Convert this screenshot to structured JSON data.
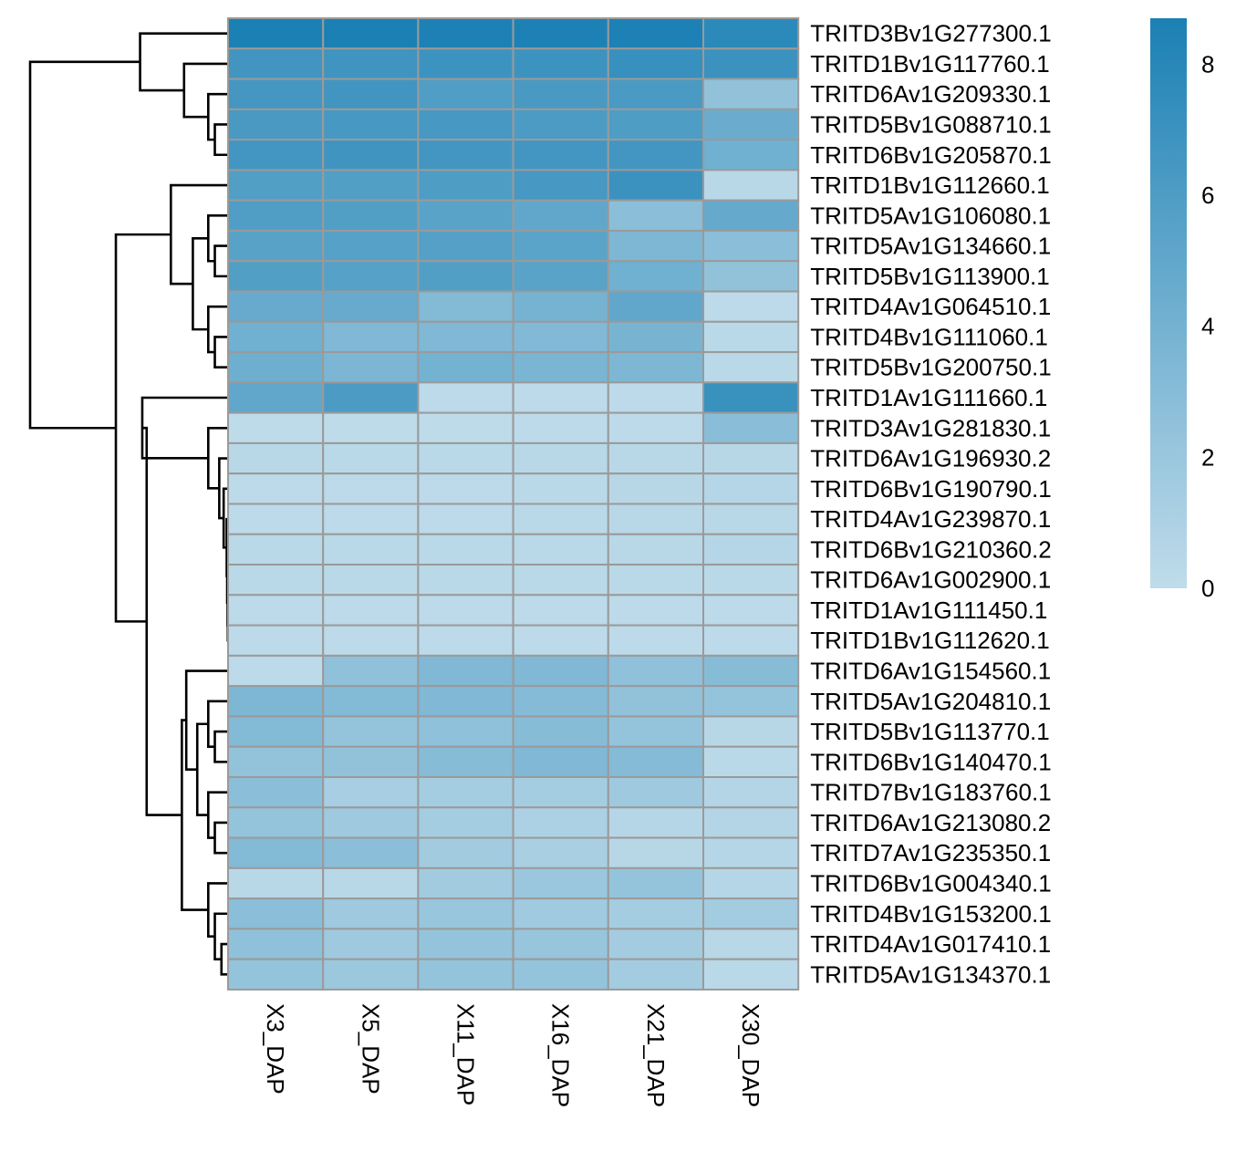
{
  "chart_data": {
    "type": "heatmap",
    "title": "",
    "xlabel": "",
    "ylabel": "",
    "columns": [
      "X3_DAP",
      "X5_DAP",
      "X11_DAP",
      "X16_DAP",
      "X21_DAP",
      "X30_DAP"
    ],
    "rows": [
      "TRITD3Bv1G277300.1",
      "TRITD1Bv1G117760.1",
      "TRITD6Av1G209330.1",
      "TRITD5Bv1G088710.1",
      "TRITD6Bv1G205870.1",
      "TRITD1Bv1G112660.1",
      "TRITD5Av1G106080.1",
      "TRITD5Av1G134660.1",
      "TRITD5Bv1G113900.1",
      "TRITD4Av1G064510.1",
      "TRITD4Bv1G111060.1",
      "TRITD5Bv1G200750.1",
      "TRITD1Av1G111660.1",
      "TRITD3Av1G281830.1",
      "TRITD6Av1G196930.2",
      "TRITD6Bv1G190790.1",
      "TRITD4Av1G239870.1",
      "TRITD6Bv1G210360.2",
      "TRITD6Av1G002900.1",
      "TRITD1Av1G111450.1",
      "TRITD1Bv1G112620.1",
      "TRITD6Av1G154560.1",
      "TRITD5Av1G204810.1",
      "TRITD5Bv1G113770.1",
      "TRITD6Bv1G140470.1",
      "TRITD7Bv1G183760.1",
      "TRITD6Av1G213080.2",
      "TRITD7Av1G235350.1",
      "TRITD6Bv1G004340.1",
      "TRITD4Bv1G153200.1",
      "TRITD4Av1G017410.1",
      "TRITD5Av1G134370.1"
    ],
    "values": [
      [
        8.7,
        8.7,
        8.6,
        8.6,
        8.6,
        7.8
      ],
      [
        6.7,
        6.8,
        6.9,
        6.9,
        7.2,
        7.0
      ],
      [
        6.5,
        6.7,
        5.9,
        6.3,
        6.2,
        2.5
      ],
      [
        6.3,
        6.4,
        6.4,
        6.1,
        6.0,
        4.5
      ],
      [
        6.6,
        6.8,
        6.6,
        6.6,
        6.6,
        4.2
      ],
      [
        5.8,
        5.8,
        6.0,
        6.4,
        7.0,
        0.4
      ],
      [
        5.9,
        5.8,
        5.4,
        5.0,
        2.8,
        4.8
      ],
      [
        5.5,
        5.6,
        5.7,
        5.3,
        3.5,
        2.8
      ],
      [
        5.8,
        5.6,
        5.8,
        5.4,
        4.2,
        2.5
      ],
      [
        4.7,
        4.7,
        3.2,
        3.9,
        5.0,
        0.2
      ],
      [
        4.2,
        3.4,
        3.4,
        3.3,
        3.8,
        0.3
      ],
      [
        4.3,
        3.6,
        4.0,
        3.7,
        3.5,
        0.3
      ],
      [
        5.0,
        6.1,
        0.2,
        0.2,
        0.2,
        7.1
      ],
      [
        0.1,
        0.1,
        0.1,
        0.2,
        0.2,
        2.9
      ],
      [
        0.4,
        0.3,
        0.3,
        0.4,
        0.4,
        0.5
      ],
      [
        0.2,
        0.2,
        0.2,
        0.3,
        0.5,
        0.6
      ],
      [
        0.2,
        0.2,
        0.2,
        0.3,
        0.4,
        0.4
      ],
      [
        0.3,
        0.3,
        0.3,
        0.3,
        0.4,
        0.6
      ],
      [
        0.3,
        0.3,
        0.3,
        0.3,
        0.3,
        0.3
      ],
      [
        0.2,
        0.2,
        0.2,
        0.2,
        0.2,
        0.2
      ],
      [
        0.2,
        0.2,
        0.2,
        0.2,
        0.2,
        0.2
      ],
      [
        0.2,
        2.6,
        3.4,
        3.4,
        2.6,
        3.0
      ],
      [
        3.5,
        3.2,
        3.4,
        3.1,
        2.5,
        2.3
      ],
      [
        3.2,
        2.3,
        2.6,
        3.0,
        2.3,
        0.5
      ],
      [
        2.4,
        2.5,
        3.0,
        3.4,
        3.1,
        0.3
      ],
      [
        2.8,
        1.3,
        1.4,
        1.4,
        1.8,
        0.7
      ],
      [
        2.3,
        1.8,
        1.4,
        1.0,
        0.6,
        0.7
      ],
      [
        3.2,
        2.8,
        1.6,
        1.2,
        0.5,
        0.6
      ],
      [
        0.4,
        0.4,
        1.6,
        2.0,
        2.3,
        0.6
      ],
      [
        2.8,
        1.8,
        2.1,
        1.7,
        1.4,
        1.5
      ],
      [
        2.6,
        1.8,
        2.3,
        2.2,
        1.5,
        0.4
      ],
      [
        2.3,
        1.9,
        2.3,
        2.3,
        1.5,
        0.3
      ]
    ],
    "scale": {
      "min": 0,
      "max": 8.7,
      "low_color": "#c0dcea",
      "high_color": "#1b80b4"
    },
    "legend": {
      "position": "right",
      "ticks": [
        "0",
        "2",
        "4",
        "6",
        "8"
      ]
    },
    "grid_color": "#9a9a9a",
    "dendrogram_color": "#000000",
    "row_dendrogram": {
      "leaf_order": [
        0,
        1,
        2,
        3,
        4,
        5,
        6,
        7,
        8,
        9,
        10,
        11,
        12,
        13,
        14,
        15,
        16,
        17,
        18,
        19,
        20,
        21,
        22,
        23,
        24,
        25,
        26,
        27,
        28,
        29,
        30,
        31
      ],
      "merges": [
        [
          3,
          4,
          0.6
        ],
        [
          2,
          -1,
          0.9
        ],
        [
          1,
          -2,
          2.0
        ],
        [
          0,
          -3,
          4.0
        ],
        [
          7,
          8,
          0.6
        ],
        [
          6,
          -5,
          0.9
        ],
        [
          10,
          11,
          0.6
        ],
        [
          9,
          -7,
          0.9
        ],
        [
          -6,
          -8,
          1.6
        ],
        [
          5,
          -9,
          2.6
        ],
        [
          19,
          20,
          0.01
        ],
        [
          18,
          -11,
          0.02
        ],
        [
          17,
          -12,
          0.04
        ],
        [
          16,
          -13,
          0.06
        ],
        [
          15,
          -14,
          0.2
        ],
        [
          14,
          -15,
          0.4
        ],
        [
          13,
          -16,
          0.9
        ],
        [
          12,
          -17,
          3.9
        ],
        [
          23,
          24,
          0.6
        ],
        [
          22,
          -19,
          0.9
        ],
        [
          26,
          27,
          0.6
        ],
        [
          25,
          -21,
          0.9
        ],
        [
          -20,
          -22,
          1.4
        ],
        [
          21,
          -23,
          1.9
        ],
        [
          30,
          31,
          0.3
        ],
        [
          29,
          -25,
          0.6
        ],
        [
          28,
          -26,
          0.9
        ],
        [
          -24,
          -27,
          2.1
        ],
        [
          -18,
          -28,
          3.7
        ],
        [
          -10,
          -29,
          5.1
        ],
        [
          -4,
          -30,
          9.0
        ]
      ]
    }
  }
}
